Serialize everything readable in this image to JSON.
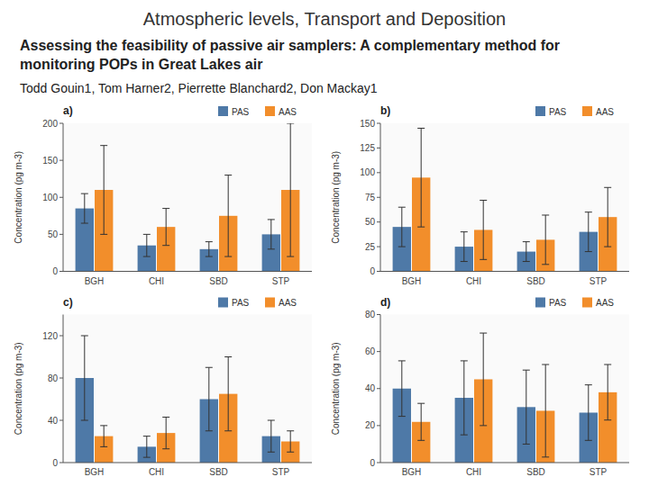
{
  "title": "Atmospheric levels, Transport and Deposition",
  "subtitle": "Assessing the feasibility of passive air samplers: A complementary method for monitoring POPs in Great Lakes air",
  "annotations": [
    "Todd Gouin1, Tom Harner2, Pierrette Blanchard2, Don Mackay1"
  ],
  "chart_data": [
    {
      "type": "bar",
      "title": "a)",
      "categories": [
        "BGH",
        "CHI",
        "SBD",
        "STP"
      ],
      "ylabel": "Concentration (pg m-3)",
      "ylim": [
        0,
        200
      ],
      "yticks": [
        0,
        50,
        100,
        150,
        200
      ],
      "legend": "upper right",
      "grid": false,
      "series": [
        {
          "name": "PAS",
          "values": [
            85,
            35,
            30,
            50
          ],
          "errors": [
            20,
            15,
            10,
            20
          ]
        },
        {
          "name": "AAS",
          "values": [
            110,
            60,
            75,
            110
          ],
          "errors": [
            60,
            25,
            55,
            90
          ]
        }
      ]
    },
    {
      "type": "bar",
      "title": "b)",
      "categories": [
        "BGH",
        "CHI",
        "SBD",
        "STP"
      ],
      "ylabel": "Concentration (pg m-3)",
      "ylim": [
        0,
        150
      ],
      "yticks": [
        0,
        25,
        50,
        75,
        100,
        125,
        150
      ],
      "legend": "upper right",
      "grid": false,
      "series": [
        {
          "name": "PAS",
          "values": [
            45,
            25,
            20,
            40
          ],
          "errors": [
            20,
            15,
            10,
            20
          ]
        },
        {
          "name": "AAS",
          "values": [
            95,
            42,
            32,
            55
          ],
          "errors": [
            50,
            30,
            25,
            30
          ]
        }
      ]
    },
    {
      "type": "bar",
      "title": "c)",
      "categories": [
        "BGH",
        "CHI",
        "SBD",
        "STP"
      ],
      "ylabel": "Concentration (pg m-3)",
      "ylim": [
        0,
        140
      ],
      "yticks": [
        0,
        40,
        80,
        120
      ],
      "legend": "upper right",
      "grid": false,
      "series": [
        {
          "name": "PAS",
          "values": [
            80,
            15,
            60,
            25
          ],
          "errors": [
            40,
            10,
            30,
            15
          ]
        },
        {
          "name": "AAS",
          "values": [
            25,
            28,
            65,
            20
          ],
          "errors": [
            10,
            15,
            35,
            10
          ]
        }
      ]
    },
    {
      "type": "bar",
      "title": "d)",
      "categories": [
        "BGH",
        "CHI",
        "SBD",
        "STP"
      ],
      "ylabel": "Concentration (pg m-3)",
      "ylim": [
        0,
        80
      ],
      "yticks": [
        0,
        20,
        40,
        60,
        80
      ],
      "legend": "upper right",
      "grid": false,
      "series": [
        {
          "name": "PAS",
          "values": [
            40,
            35,
            30,
            27
          ],
          "errors": [
            15,
            20,
            20,
            15
          ]
        },
        {
          "name": "AAS",
          "values": [
            22,
            45,
            28,
            38
          ],
          "errors": [
            10,
            25,
            25,
            15
          ]
        }
      ]
    }
  ]
}
